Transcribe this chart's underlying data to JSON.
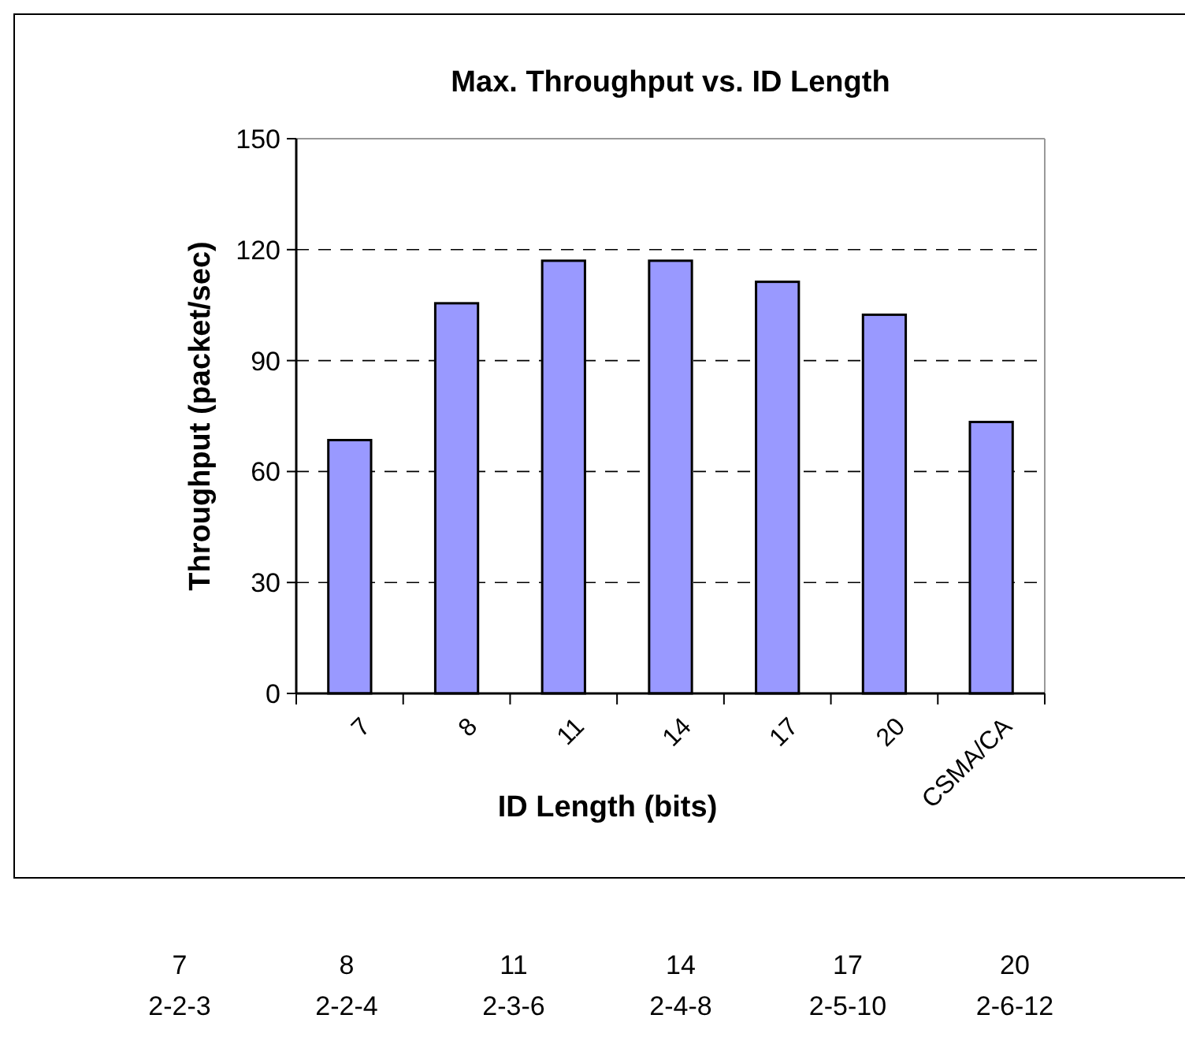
{
  "chart_data": {
    "type": "bar",
    "title": "Max. Throughput vs. ID Length",
    "xlabel": "ID Length (bits)",
    "ylabel": "Throughput (packet/sec)",
    "categories": [
      "7",
      "8",
      "11",
      "14",
      "17",
      "20",
      "CSMA/CA"
    ],
    "values": [
      68.5,
      105.5,
      117,
      117,
      111.3,
      102.4,
      73.4
    ],
    "color": "#9999ff",
    "ylim": [
      0,
      150
    ],
    "yticks": [
      0,
      30,
      60,
      90,
      120,
      150
    ],
    "grid": "y",
    "annotations": [
      "7",
      "8",
      "11",
      "14",
      "17",
      "20",
      "2-2-3",
      "2-2-4",
      "2-3-6",
      "2-4-8",
      "2-5-10",
      "2-6-12"
    ]
  }
}
